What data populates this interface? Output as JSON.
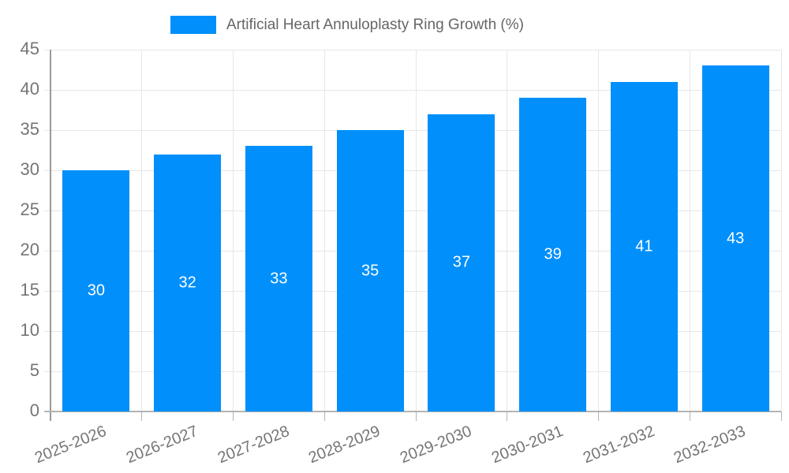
{
  "chart_data": {
    "type": "bar",
    "title": "Artificial Heart Annuloplasty Ring Growth (%)",
    "categories": [
      "2025-2026",
      "2026-2027",
      "2027-2028",
      "2028-2029",
      "2029-2030",
      "2030-2031",
      "2031-2032",
      "2032-2033"
    ],
    "series": [
      {
        "name": "Artificial Heart Annuloplasty Ring Growth (%)",
        "values": [
          30,
          32,
          33,
          35,
          37,
          39,
          41,
          43
        ]
      }
    ],
    "bar_value_labels": [
      "30",
      "32",
      "33",
      "35",
      "37",
      "39",
      "41",
      "43"
    ],
    "ylim": [
      0,
      45
    ],
    "ytick_step": 5,
    "ytick_labels": [
      "0",
      "5",
      "10",
      "15",
      "20",
      "25",
      "30",
      "35",
      "40",
      "45"
    ],
    "xlabel": "",
    "ylabel": "",
    "legend_position": "top",
    "grid": "both",
    "x_label_rotation_deg": -22,
    "colors": {
      "bar": "#008FFB",
      "bar_label": "#ffffff",
      "gridline": "#e7e7e7",
      "axis_line": "#b3b3b3",
      "y_axis_line": "#9a9a9a",
      "tick_text": "#757575",
      "legend_text": "#666666",
      "background": "#ffffff"
    }
  }
}
